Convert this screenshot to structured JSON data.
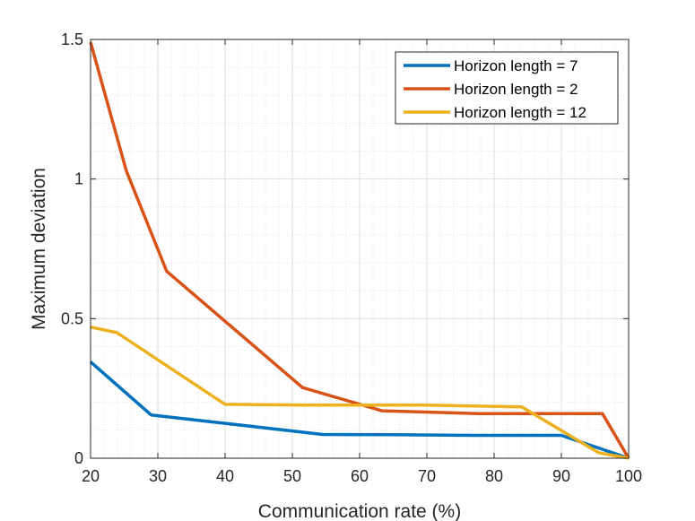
{
  "chart_data": {
    "type": "line",
    "title": "",
    "xlabel": "Communication rate (%)",
    "ylabel": "Maximum deviation",
    "xlim": [
      20,
      100
    ],
    "ylim": [
      0,
      1.5
    ],
    "xticks": [
      20,
      30,
      40,
      50,
      60,
      70,
      80,
      90,
      100
    ],
    "xtick_labels": [
      "20",
      "30",
      "40",
      "50",
      "60",
      "70",
      "80",
      "90",
      "100"
    ],
    "yticks": [
      0,
      0.5,
      1,
      1.5
    ],
    "ytick_labels": [
      "0",
      "0.5",
      "1",
      "1.5"
    ],
    "grid": true,
    "minor_grid": true,
    "legend_position": "top-right",
    "series": [
      {
        "name": "Horizon length = 7",
        "color": "#0072BD",
        "x": [
          20,
          29,
          40,
          54.5,
          65,
          77,
          90,
          100
        ],
        "y": [
          0.345,
          0.155,
          0.125,
          0.085,
          0.084,
          0.082,
          0.082,
          0.0
        ]
      },
      {
        "name": "Horizon length = 2",
        "color": "#D95319",
        "x": [
          20,
          25.3,
          31.3,
          51.5,
          63.3,
          77.6,
          96.1,
          100
        ],
        "y": [
          1.49,
          1.03,
          0.67,
          0.253,
          0.17,
          0.16,
          0.16,
          0.0
        ]
      },
      {
        "name": "Horizon length = 12",
        "color": "#EDB120",
        "x": [
          20,
          23.9,
          40,
          51.5,
          60,
          70,
          84.1,
          95.5,
          100
        ],
        "y": [
          0.47,
          0.45,
          0.193,
          0.19,
          0.19,
          0.19,
          0.184,
          0.02,
          0.0
        ]
      }
    ]
  }
}
